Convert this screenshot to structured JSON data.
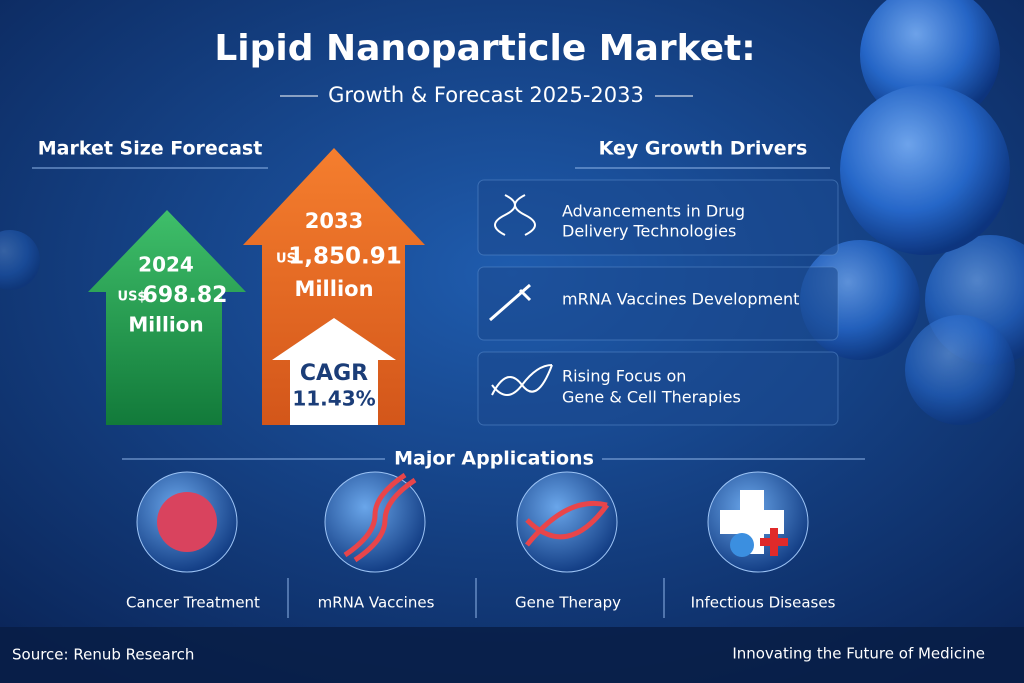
{
  "header": {
    "title": "Lipid Nanoparticle Market:",
    "subtitle": "Growth & Forecast 2025-2033"
  },
  "market_size": {
    "heading": "Market Size Forecast",
    "current": {
      "year": "2024",
      "currency": "US$",
      "amount": "698.82",
      "unit": "Million"
    },
    "forecast": {
      "year": "2033",
      "currency": "US",
      "amount": "1,850.91",
      "unit": "Million"
    },
    "cagr": {
      "label": "CAGR",
      "value": "11.43%"
    }
  },
  "drivers": {
    "heading": "Key Growth Drivers",
    "items": [
      [
        "Advancements in Drug",
        "Delivery Technologies"
      ],
      [
        "mRNA Vaccines Development"
      ],
      [
        "Rising Focus on",
        "Gene & Cell Therapies"
      ]
    ]
  },
  "applications": {
    "heading": "Major Applications",
    "items": [
      "Cancer Treatment",
      "mRNA Vaccines",
      "Gene Therapy",
      "Infectious Diseases"
    ]
  },
  "footer": {
    "source": "Source: Renub Research",
    "tagline": "Innovating the Future of Medicine"
  }
}
